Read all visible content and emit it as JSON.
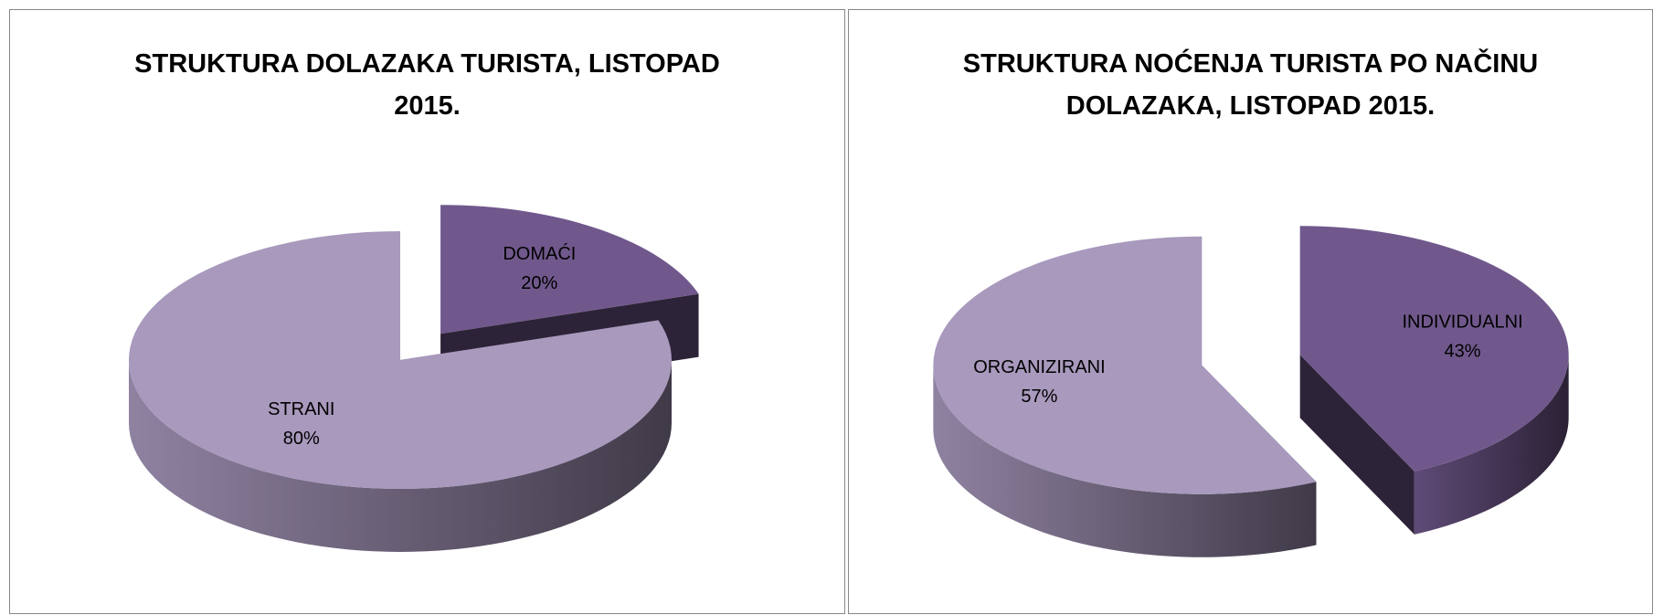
{
  "chart_data": [
    {
      "type": "pie",
      "title": "STRUKTURA DOLAZAKA TURISTA, LISTOPAD 2015.",
      "categories": [
        "DOMAĆI",
        "STRANI"
      ],
      "values": [
        20,
        80
      ],
      "value_labels": [
        "20%",
        "80%"
      ],
      "colors": [
        "#70588c",
        "#a899bd"
      ]
    },
    {
      "type": "pie",
      "title": "STRUKTURA NOĆENJA TURISTA PO NAČINU DOLAZAKA, LISTOPAD 2015.",
      "categories": [
        "INDIVIDUALNI",
        "ORGANIZIRANI"
      ],
      "values": [
        43,
        57
      ],
      "value_labels": [
        "43%",
        "57%"
      ],
      "colors": [
        "#70588c",
        "#a899bd"
      ]
    }
  ]
}
